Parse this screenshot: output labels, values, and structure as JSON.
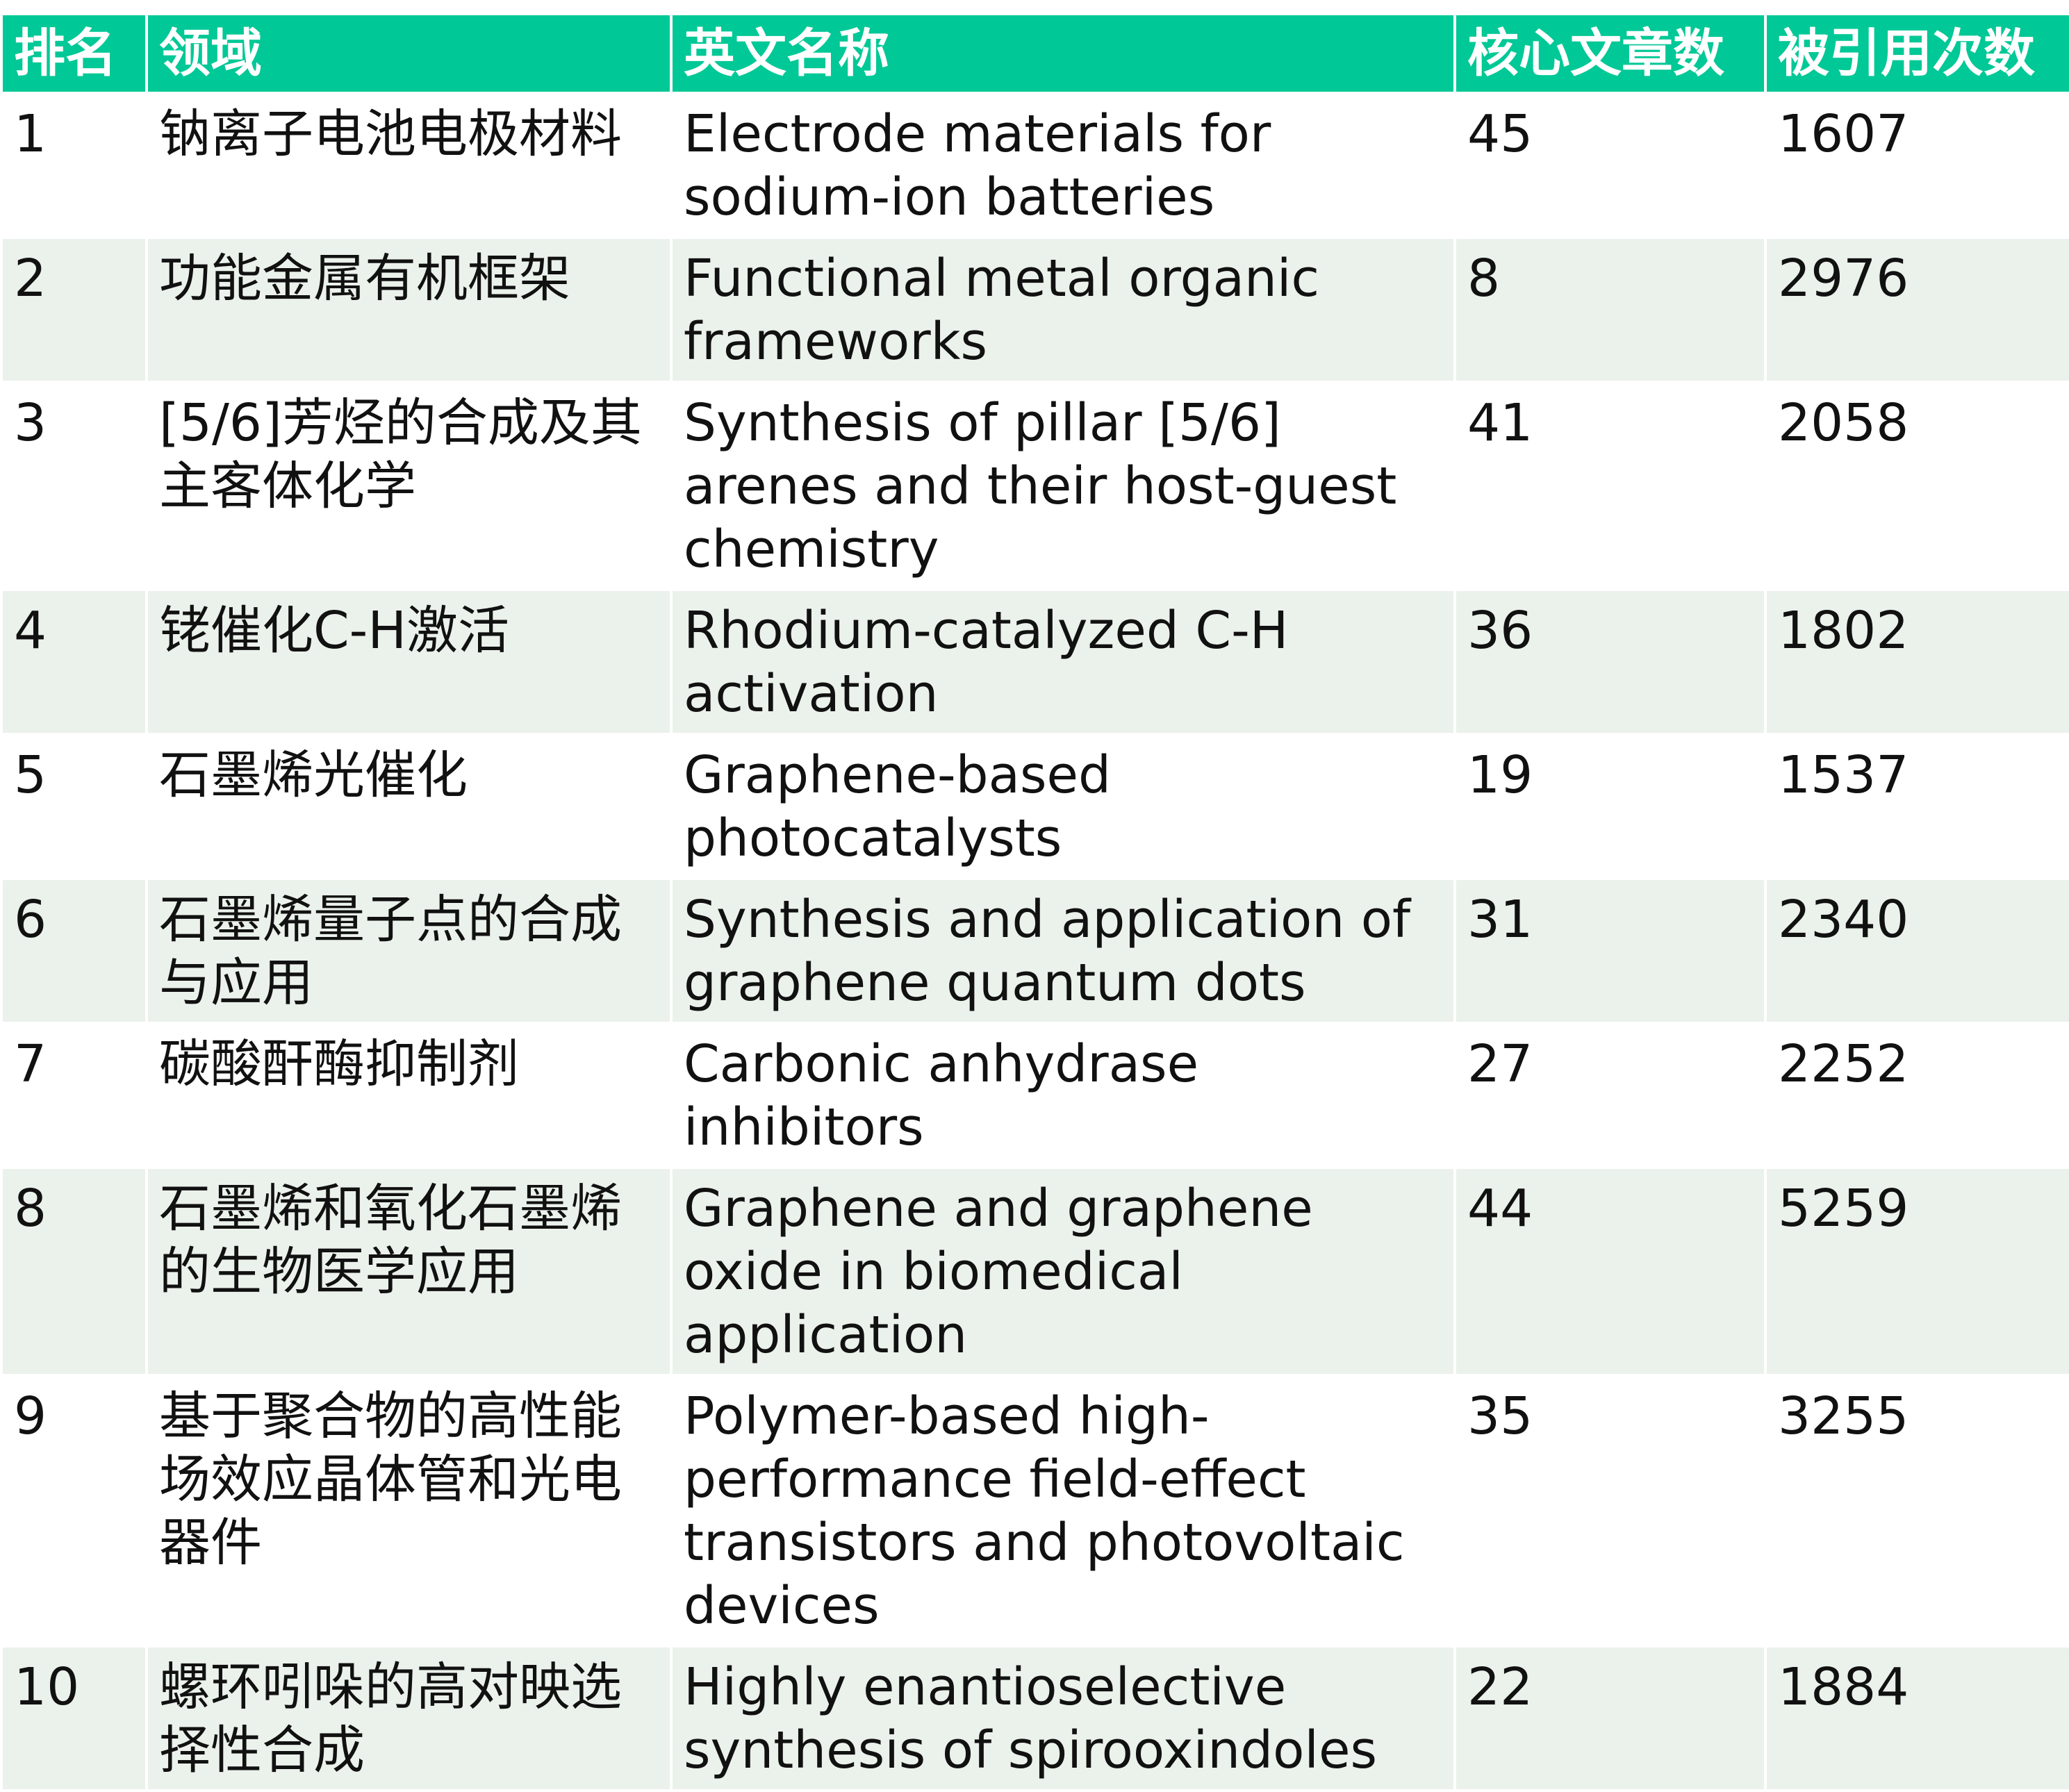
{
  "colors": {
    "header_bg": "#00c896",
    "header_text": "#ffffff",
    "stripe_bg": "#ebf1eb"
  },
  "headers": [
    "排名",
    "领域",
    "英文名称",
    "核心文章数",
    "被引用次数"
  ],
  "rows": [
    {
      "rank": "1",
      "field": "钠离子电池电极材料",
      "english": "Electrode materials for sodium-ion batteries",
      "core_papers": "45",
      "citations": "1607"
    },
    {
      "rank": "2",
      "field": "功能金属有机框架",
      "english": "Functional metal organic frameworks",
      "core_papers": "8",
      "citations": "2976"
    },
    {
      "rank": "3",
      "field": "[5/6]芳烃的合成及其主客体化学",
      "english": "Synthesis of pillar [5/6] arenes and their host-guest chemistry",
      "core_papers": "41",
      "citations": "2058"
    },
    {
      "rank": "4",
      "field": "铑催化C-H激活",
      "english": "Rhodium-catalyzed C-H activation",
      "core_papers": "36",
      "citations": "1802"
    },
    {
      "rank": "5",
      "field": "石墨烯光催化",
      "english": "Graphene-based photocatalysts",
      "core_papers": "19",
      "citations": "1537"
    },
    {
      "rank": "6",
      "field": "石墨烯量子点的合成与应用",
      "english": "Synthesis and application of graphene quantum dots",
      "core_papers": "31",
      "citations": "2340"
    },
    {
      "rank": "7",
      "field": "碳酸酐酶抑制剂",
      "english": "Carbonic anhydrase inhibitors",
      "core_papers": "27",
      "citations": "2252"
    },
    {
      "rank": "8",
      "field": "石墨烯和氧化石墨烯的生物医学应用",
      "english": "Graphene and graphene oxide in biomedical application",
      "core_papers": "44",
      "citations": "5259"
    },
    {
      "rank": "9",
      "field": "基于聚合物的高性能场效应晶体管和光电器件",
      "english": "Polymer-based high-performance field-effect transistors and photovoltaic devices",
      "core_papers": "35",
      "citations": "3255"
    },
    {
      "rank": "10",
      "field": "螺环吲哚的高对映选择性合成",
      "english": "Highly enantioselective synthesis of spirooxindoles",
      "core_papers": "22",
      "citations": "1884"
    }
  ]
}
